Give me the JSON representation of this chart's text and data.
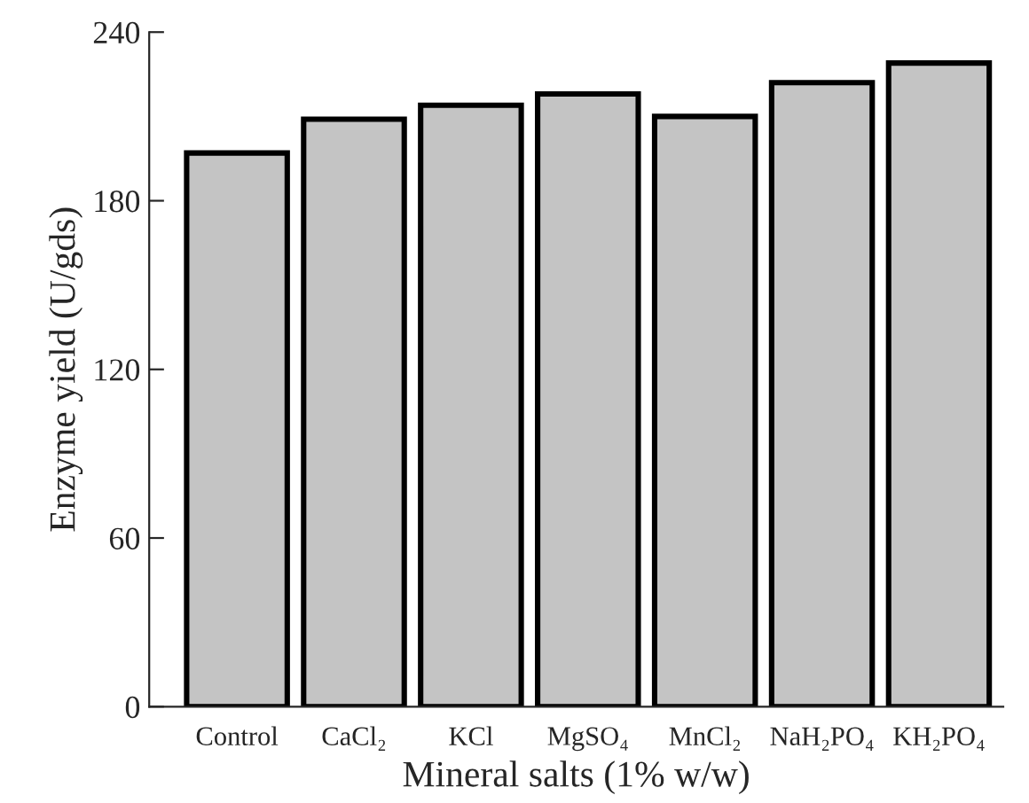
{
  "chart_data": {
    "type": "bar",
    "xlabel": "Mineral salts (1% w/w)",
    "ylabel": "Enzyme yield (U/gds)",
    "categories": [
      "Control",
      "CaCl₂",
      "KCl",
      "MgSO₄",
      "MnCl₂",
      "NaH₂PO₄",
      "KH₂PO₄"
    ],
    "values": [
      197,
      209,
      214,
      218,
      210,
      222,
      229
    ],
    "color": "#c4c4c4",
    "ylim": [
      0,
      240
    ],
    "yticks": [
      0,
      60,
      120,
      180,
      240
    ],
    "grid": false
  }
}
